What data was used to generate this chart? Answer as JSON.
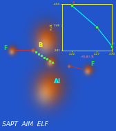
{
  "bg_color": "#2255cc",
  "title_text": "SAPT  AIM  ELF",
  "title_color": "white",
  "title_fontsize": 6.5,
  "label_B": "B",
  "label_Al": "Al",
  "label_F1": "F",
  "label_F2": "F",
  "label_B_color": "yellow",
  "label_Al_color": "cyan",
  "label_F_color": "#00ff00",
  "inset": {
    "xlim": [
      2.2,
      2.3
    ],
    "ylim": [
      2.41,
      2.54
    ],
    "xlabel": "r(B,Al) /Å",
    "ylabel": "R /Å",
    "xlabel_color": "#ff8888",
    "ylabel_color": "yellow",
    "line_color": "cyan",
    "point_color": "#44ff44",
    "points_x": [
      2.22,
      2.27,
      2.3
    ],
    "points_y": [
      2.535,
      2.475,
      2.422
    ],
    "xticks": [
      2.22,
      2.27,
      2.3
    ],
    "yticks": [
      2.41,
      2.48,
      2.54
    ],
    "xtick_labels": [
      "2.22",
      "2.27",
      "2.30"
    ],
    "ytick_labels": [
      "2.41",
      "2.48",
      "2.54"
    ],
    "tick_color": "yellow",
    "border_color": "#888800",
    "point_label_0": "Al",
    "point_label_1": "F",
    "point_label_2": "G",
    "point_label_colors": [
      "#ff4444",
      "#ff4444",
      "#ff8800"
    ]
  },
  "dashed_color": "#44ff44",
  "bond_color_BF": "#cc3333",
  "bond_color_AlF": "#cc3333",
  "blob_dark": "#7a2e00",
  "blob_mid": "#c05010",
  "blob_bright": "#e07828",
  "blob_shine": "#f0a050"
}
